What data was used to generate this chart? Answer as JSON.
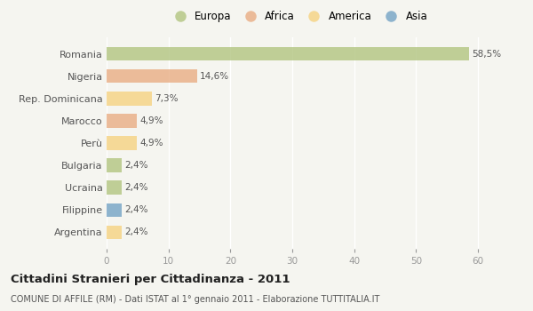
{
  "categories": [
    "Romania",
    "Nigeria",
    "Rep. Dominicana",
    "Marocco",
    "Perù",
    "Bulgaria",
    "Ucraina",
    "Filippine",
    "Argentina"
  ],
  "values": [
    58.5,
    14.6,
    7.3,
    4.9,
    4.9,
    2.4,
    2.4,
    2.4,
    2.4
  ],
  "labels": [
    "58,5%",
    "14,6%",
    "7,3%",
    "4,9%",
    "4,9%",
    "2,4%",
    "2,4%",
    "2,4%",
    "2,4%"
  ],
  "colors": [
    "#adc178",
    "#e8a87c",
    "#f5d07a",
    "#e8a87c",
    "#f5d07a",
    "#adc178",
    "#adc178",
    "#6b9dc2",
    "#f5d07a"
  ],
  "legend_labels": [
    "Europa",
    "Africa",
    "America",
    "Asia"
  ],
  "legend_colors": [
    "#adc178",
    "#e8a87c",
    "#f5d07a",
    "#6b9dc2"
  ],
  "title": "Cittadini Stranieri per Cittadinanza - 2011",
  "subtitle": "COMUNE DI AFFILE (RM) - Dati ISTAT al 1° gennaio 2011 - Elaborazione TUTTITALIA.IT",
  "xlim": [
    0,
    62
  ],
  "xticks": [
    0,
    10,
    20,
    30,
    40,
    50,
    60
  ],
  "background_color": "#f5f5f0",
  "bar_alpha": 0.75,
  "grid_color": "#ffffff",
  "label_color": "#555555",
  "ytick_color": "#555555"
}
